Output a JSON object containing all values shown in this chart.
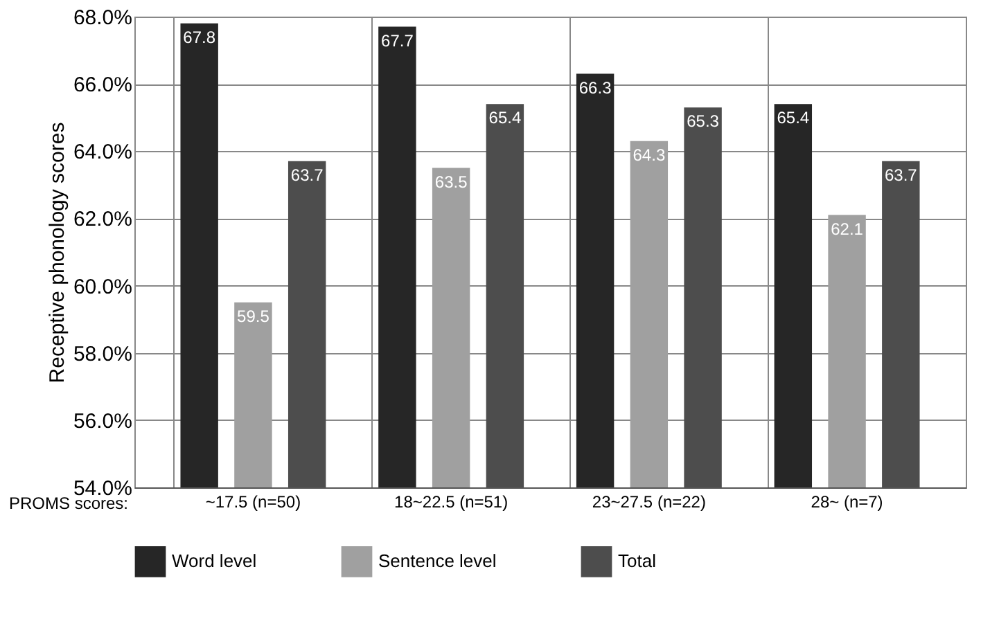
{
  "chart_data": {
    "type": "bar",
    "ylabel": "Receptive phonology scores",
    "xlabel": "PROMS scores:",
    "categories": [
      "~17.5 (n=50)",
      "18~22.5 (n=51)",
      "23~27.5 (n=22)",
      "28~ (n=7)"
    ],
    "series": [
      {
        "name": "Word level",
        "color": "#262626",
        "values": [
          67.8,
          67.7,
          66.3,
          65.4
        ]
      },
      {
        "name": "Sentence level",
        "color": "#a0a0a0",
        "values": [
          59.5,
          63.5,
          64.3,
          62.1
        ]
      },
      {
        "name": "Total",
        "color": "#4d4d4d",
        "values": [
          63.7,
          65.4,
          65.3,
          63.7
        ]
      }
    ],
    "ylim": [
      54,
      68
    ],
    "yticks": [
      {
        "value": 54,
        "label": "54.0%"
      },
      {
        "value": 56,
        "label": "56.0%"
      },
      {
        "value": 58,
        "label": "58.0%"
      },
      {
        "value": 60,
        "label": "60.0%"
      },
      {
        "value": 62,
        "label": "62.0%"
      },
      {
        "value": 64,
        "label": "64.0%"
      },
      {
        "value": 66,
        "label": "66.0%"
      },
      {
        "value": 68,
        "label": "68.0%"
      }
    ],
    "grid": true,
    "legend": "bottom",
    "data_labels": true
  }
}
